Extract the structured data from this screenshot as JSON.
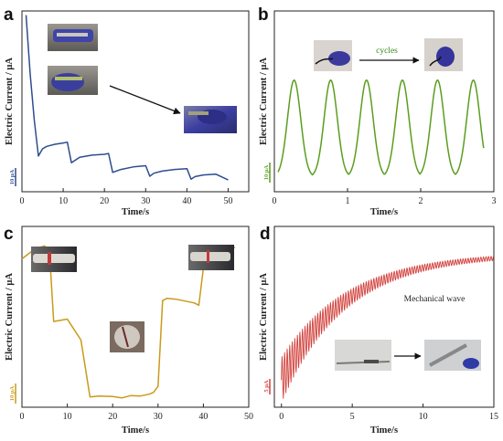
{
  "panels": {
    "a": {
      "letter": "a"
    },
    "b": {
      "letter": "b"
    },
    "c": {
      "letter": "c"
    },
    "d": {
      "letter": "d"
    }
  },
  "chart_data": [
    {
      "panel": "a",
      "type": "line",
      "xlabel": "Time/s",
      "ylabel": "Electric Current / μA",
      "scale_bar_label": "10 μA",
      "color": "#2e4d8f",
      "xlim": [
        0,
        55
      ],
      "xticks": [
        0,
        10,
        20,
        30,
        40,
        50
      ],
      "x": [
        1,
        2,
        3,
        4,
        5,
        6,
        8,
        10,
        11,
        12,
        14,
        17,
        20,
        21,
        22,
        24,
        27,
        30,
        31,
        32,
        34,
        37,
        40,
        41,
        42,
        44,
        47,
        50
      ],
      "values": [
        37.0,
        23.0,
        12.0,
        3.5,
        5.2,
        5.8,
        6.3,
        6.6,
        6.8,
        1.9,
        3.2,
        3.7,
        3.9,
        4.1,
        -0.4,
        0.3,
        0.9,
        1.2,
        -1.3,
        -0.6,
        -0.1,
        0.3,
        0.5,
        -2.0,
        -1.4,
        -1.0,
        -0.8,
        -2.2
      ]
    },
    {
      "panel": "b",
      "type": "line",
      "xlabel": "Time/s",
      "ylabel": "Electric Current / μA",
      "scale_bar_label": "10 μA",
      "annotation": "cycles",
      "color": "#5a9e1e",
      "xlim": [
        0,
        3
      ],
      "xticks": [
        0,
        1,
        2,
        3
      ],
      "peaks_x": [
        0.27,
        0.77,
        1.26,
        1.75,
        2.23,
        2.72
      ],
      "peak_value": 19,
      "trough_value": 0.8,
      "x_end": 2.86
    },
    {
      "panel": "c",
      "type": "line",
      "xlabel": "Time/s",
      "ylabel": "Electric Current / μA",
      "scale_bar_label": "10 μA",
      "color": "#c99a1a",
      "xlim": [
        0,
        50
      ],
      "xticks": [
        0,
        10,
        20,
        30,
        40,
        50
      ],
      "x": [
        0,
        2,
        4,
        5,
        5.5,
        6,
        7,
        10,
        11,
        13,
        15,
        17,
        20,
        22,
        24,
        26,
        28,
        29,
        30,
        31,
        32,
        34,
        38,
        39,
        40,
        43,
        47
      ],
      "values": [
        31,
        32.5,
        33.5,
        33.8,
        33,
        33.5,
        17.5,
        18,
        16.5,
        13.5,
        1.2,
        1.4,
        1.3,
        1.0,
        1.5,
        1.4,
        1.8,
        2.2,
        3.5,
        22,
        22.5,
        22.3,
        21.5,
        21,
        29,
        32,
        33.5
      ]
    },
    {
      "panel": "d",
      "type": "line",
      "xlabel": "Time/s",
      "ylabel": "Electric Current / μA",
      "scale_bar_label": "5 μA",
      "annotation": "Mechanical wave",
      "color": "#d2423d",
      "xlim": [
        -0.5,
        15
      ],
      "xticks": [
        0,
        5,
        10,
        15
      ],
      "envelope": {
        "baseline": 2,
        "amplitude": 28,
        "tau_s": 4.6
      },
      "oscillation_period_s": 0.18,
      "oscillation_amplitude_start": 5,
      "oscillation_amplitude_end": 0.4
    }
  ]
}
